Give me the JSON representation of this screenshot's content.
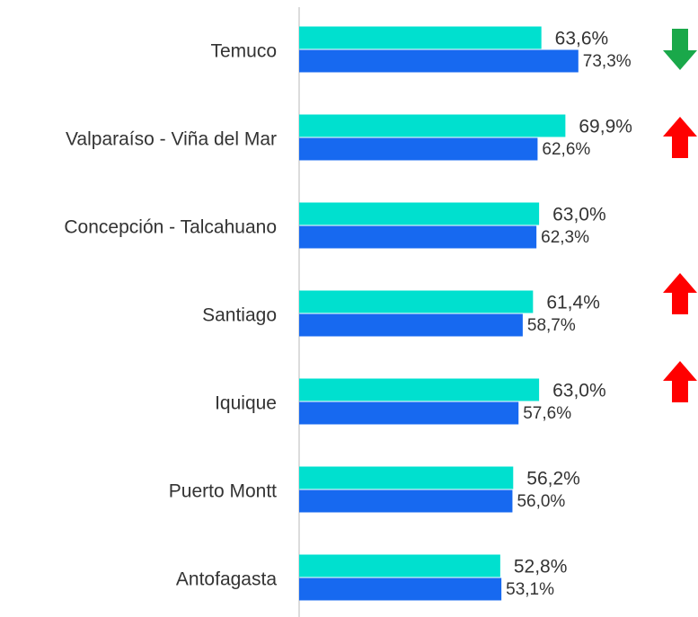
{
  "chart_data": {
    "type": "bar",
    "orientation": "horizontal",
    "categories": [
      "Temuco",
      "Valparaíso - Viña del Mar",
      "Concepción - Talcahuano",
      "Santiago",
      "Iquique",
      "Puerto Montt",
      "Antofagasta"
    ],
    "series": [
      {
        "color": "#00e0cf",
        "values": [
          63.6,
          69.9,
          63.0,
          61.4,
          63.0,
          56.2,
          52.8
        ],
        "value_labels": [
          "63,6%",
          "69,9%",
          "63,0%",
          "61,4%",
          "63,0%",
          "56,2%",
          "52,8%"
        ]
      },
      {
        "color": "#1769f0",
        "values": [
          73.3,
          62.6,
          62.3,
          58.7,
          57.6,
          56.0,
          53.1
        ],
        "value_labels": [
          "73,3%",
          "62,6%",
          "62,3%",
          "58,7%",
          "57,6%",
          "56,0%",
          "53,1%"
        ]
      }
    ],
    "xlim": [
      0,
      100
    ]
  }
}
